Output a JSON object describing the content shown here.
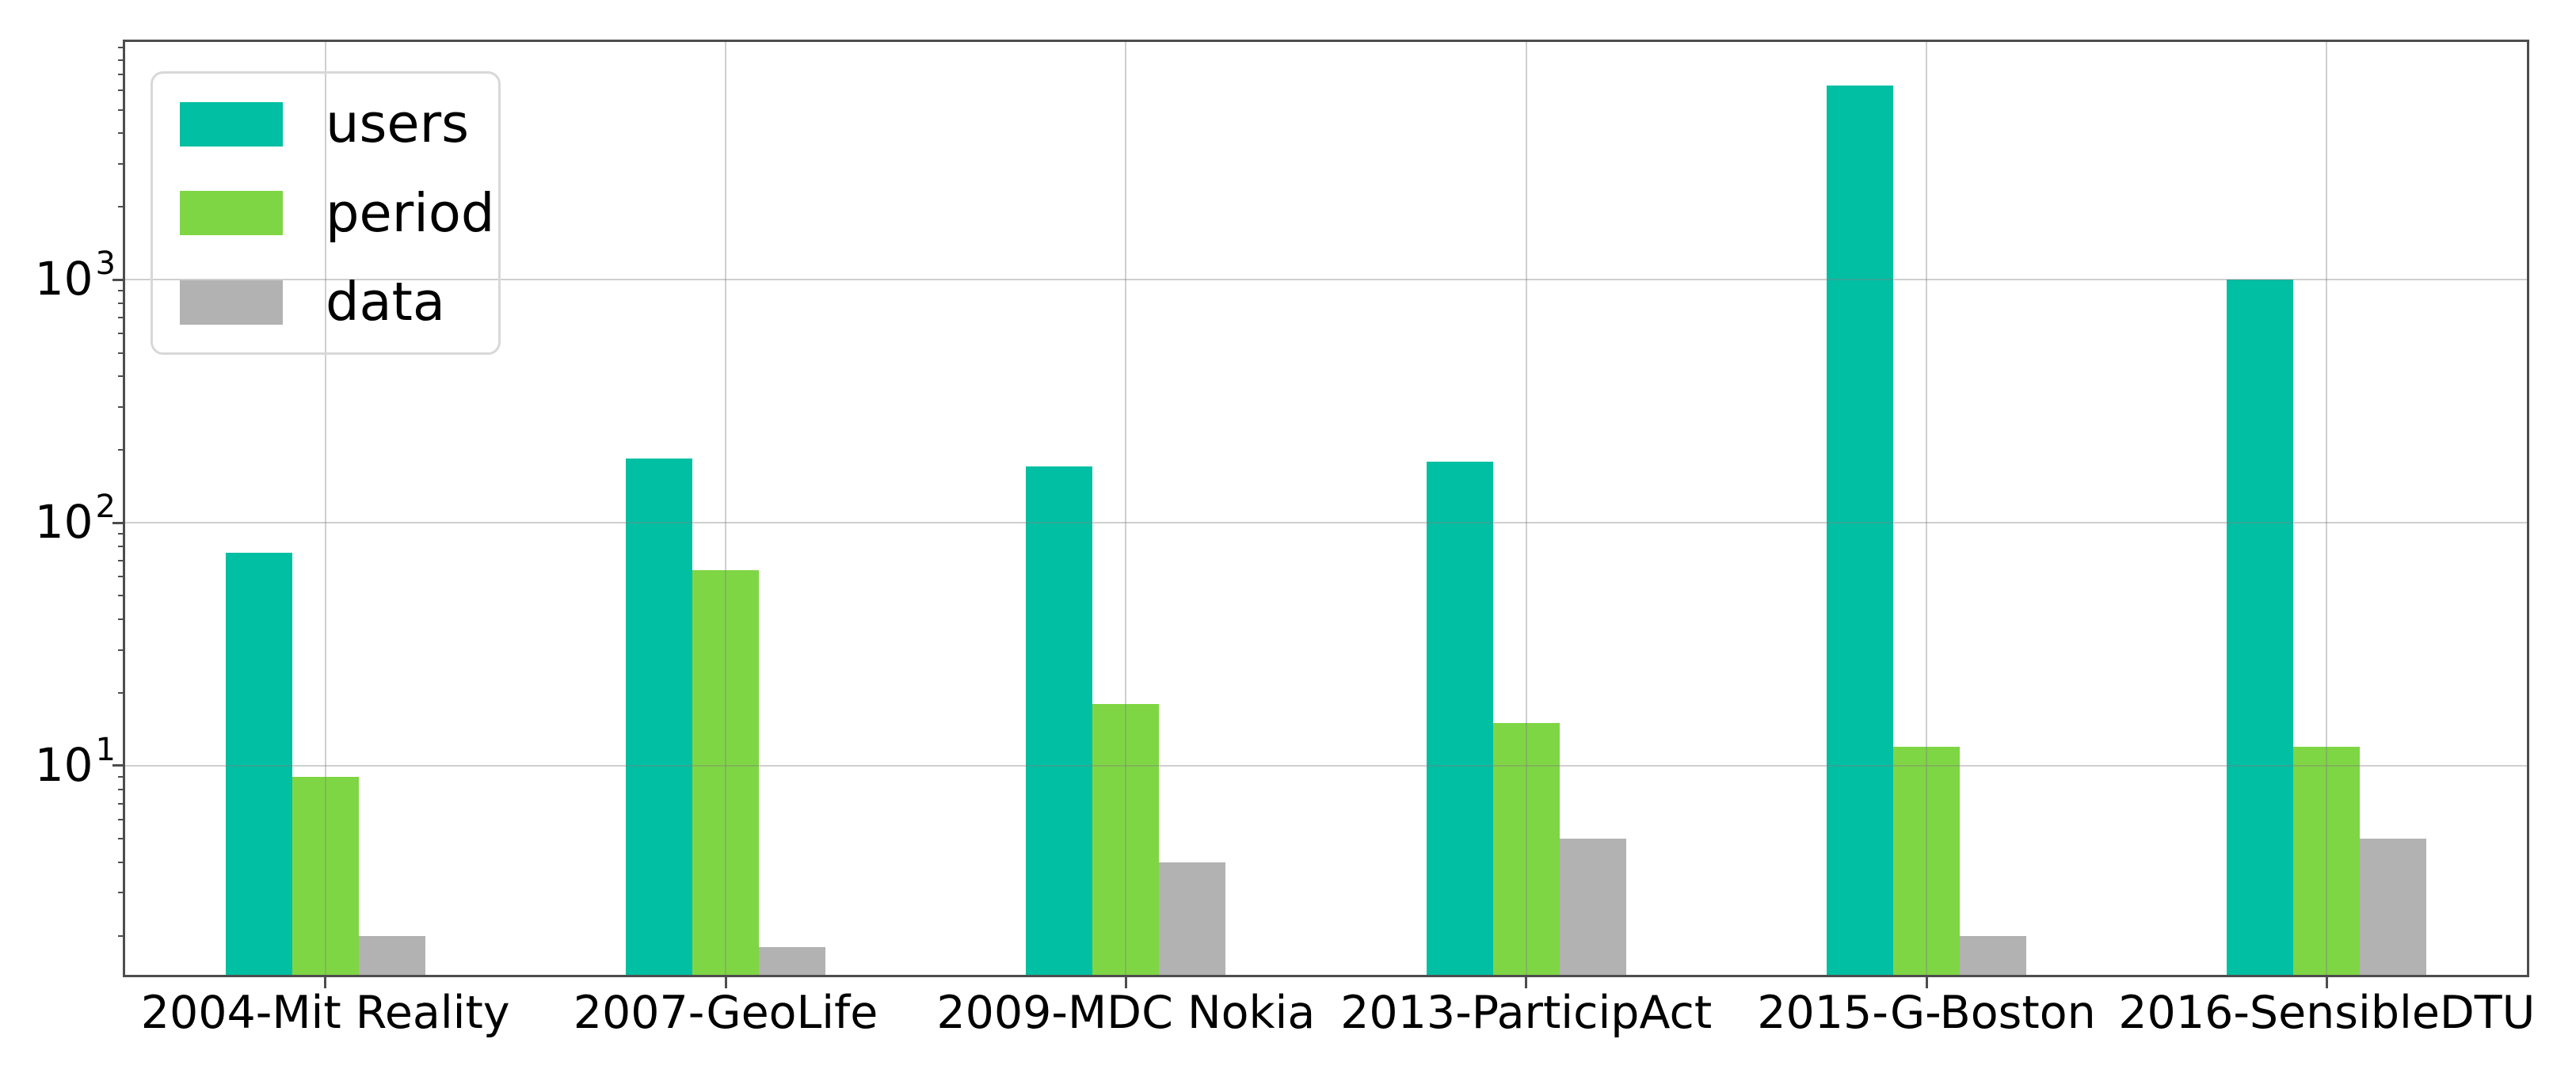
{
  "chart_data": {
    "type": "bar",
    "yscale": "log",
    "title": "",
    "xlabel": "",
    "ylabel": "",
    "categories": [
      "2004-Mit Reality",
      "2007-GeoLife",
      "2009-MDC Nokia",
      "2013-ParticipAct",
      "2015-G-Boston",
      "2016-SensibleDTU"
    ],
    "series": [
      {
        "name": "users",
        "color": "#00BFA3",
        "values": [
          75,
          183,
          171,
          178,
          6300,
          1000
        ]
      },
      {
        "name": "period",
        "color": "#7FD644",
        "values": [
          9,
          64,
          18,
          15,
          12,
          12
        ]
      },
      {
        "name": "data",
        "color": "#B2B2B2",
        "values": [
          2,
          1.8,
          4,
          5,
          2,
          5
        ]
      }
    ],
    "ylim": [
      1.38,
      9500
    ],
    "yticks": [
      {
        "value": 10,
        "base": "10",
        "exponent": "1"
      },
      {
        "value": 100,
        "base": "10",
        "exponent": "2"
      },
      {
        "value": 1000,
        "base": "10",
        "exponent": "3"
      }
    ],
    "grid": true,
    "legend_position": "upper-left",
    "colors": {
      "grid": "#cccccc",
      "axis": "#4d4d4d",
      "text": "#000000",
      "background": "#ffffff"
    }
  }
}
